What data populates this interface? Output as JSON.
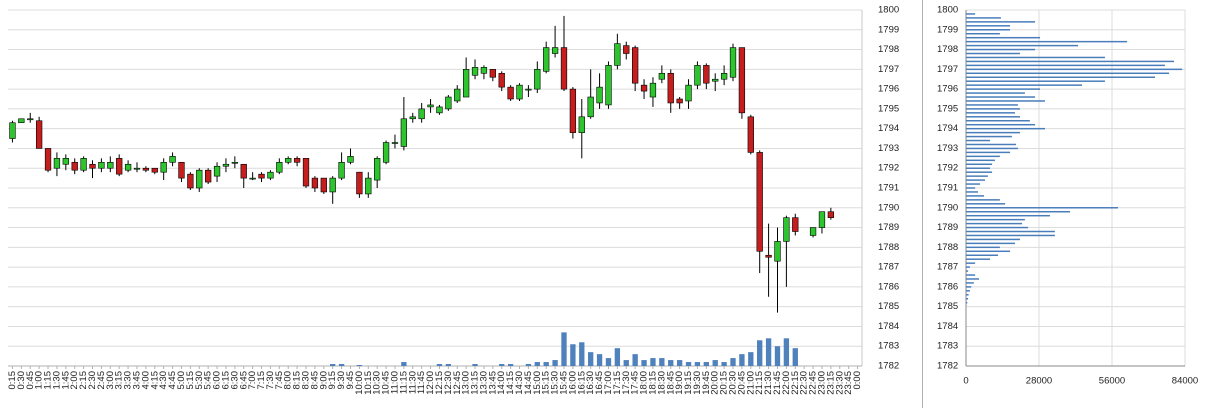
{
  "chart_data": [
    {
      "type": "candlestick",
      "categories": [
        "0:15",
        "0:30",
        "0:45",
        "1:00",
        "1:15",
        "1:30",
        "1:45",
        "2:00",
        "2:15",
        "2:30",
        "2:45",
        "3:00",
        "3:15",
        "3:30",
        "3:45",
        "4:00",
        "4:15",
        "4:30",
        "4:45",
        "5:00",
        "5:15",
        "5:30",
        "5:45",
        "6:00",
        "6:15",
        "6:30",
        "6:45",
        "7:00",
        "7:15",
        "7:30",
        "7:45",
        "8:00",
        "8:15",
        "8:30",
        "8:45",
        "9:00",
        "9:15",
        "9:30",
        "9:45",
        "10:00",
        "10:15",
        "10:30",
        "10:45",
        "11:00",
        "11:15",
        "11:30",
        "11:45",
        "12:00",
        "12:15",
        "12:30",
        "12:45",
        "13:00",
        "13:15",
        "13:30",
        "13:45",
        "14:00",
        "14:15",
        "14:30",
        "14:45",
        "15:00",
        "15:15",
        "15:30",
        "15:45",
        "16:00",
        "16:15",
        "16:30",
        "16:45",
        "17:00",
        "17:15",
        "17:30",
        "17:45",
        "18:00",
        "18:15",
        "18:30",
        "18:45",
        "19:00",
        "19:15",
        "19:30",
        "19:45",
        "20:00",
        "20:15",
        "20:30",
        "20:45",
        "21:00",
        "21:15",
        "21:30",
        "21:45",
        "22:00",
        "22:15",
        "22:30",
        "22:45",
        "23:00",
        "23:15",
        "23:30",
        "23:45",
        "0:00"
      ],
      "candles": [
        [
          1793.5,
          1794.4,
          1793.3,
          1794.3
        ],
        [
          1794.3,
          1794.5,
          1794.3,
          1794.5
        ],
        [
          1794.5,
          1794.8,
          1794.3,
          1794.5
        ],
        [
          1794.4,
          1794.6,
          1793.0,
          1793.0
        ],
        [
          1793.0,
          1793.0,
          1791.8,
          1791.9
        ],
        [
          1792.0,
          1792.8,
          1791.6,
          1792.5
        ],
        [
          1792.2,
          1792.7,
          1791.9,
          1792.5
        ],
        [
          1792.3,
          1792.5,
          1791.7,
          1791.9
        ],
        [
          1791.9,
          1792.6,
          1791.8,
          1792.5
        ],
        [
          1792.2,
          1792.4,
          1791.5,
          1792.0
        ],
        [
          1792.0,
          1792.5,
          1791.8,
          1792.3
        ],
        [
          1792.0,
          1792.6,
          1791.8,
          1792.3
        ],
        [
          1792.5,
          1792.7,
          1791.6,
          1791.7
        ],
        [
          1791.9,
          1792.4,
          1791.8,
          1792.2
        ],
        [
          1792.0,
          1792.3,
          1791.8,
          1792.0
        ],
        [
          1792.0,
          1792.1,
          1791.8,
          1791.9
        ],
        [
          1792.0,
          1792.0,
          1791.7,
          1791.8
        ],
        [
          1791.8,
          1792.5,
          1791.4,
          1792.3
        ],
        [
          1792.3,
          1792.8,
          1792.1,
          1792.6
        ],
        [
          1792.3,
          1792.3,
          1791.3,
          1791.5
        ],
        [
          1791.7,
          1791.8,
          1790.9,
          1791.0
        ],
        [
          1791.0,
          1792.0,
          1790.8,
          1791.9
        ],
        [
          1791.9,
          1792.0,
          1791.2,
          1791.3
        ],
        [
          1791.6,
          1792.3,
          1791.3,
          1792.1
        ],
        [
          1792.1,
          1792.5,
          1791.8,
          1792.2
        ],
        [
          1792.3,
          1792.6,
          1792.0,
          1792.3
        ],
        [
          1792.2,
          1792.2,
          1791.0,
          1791.5
        ],
        [
          1791.5,
          1791.8,
          1791.4,
          1791.5
        ],
        [
          1791.7,
          1791.8,
          1791.3,
          1791.5
        ],
        [
          1791.5,
          1791.9,
          1791.4,
          1791.8
        ],
        [
          1791.8,
          1792.5,
          1791.7,
          1792.3
        ],
        [
          1792.3,
          1792.6,
          1792.2,
          1792.5
        ],
        [
          1792.5,
          1792.6,
          1792.1,
          1792.3
        ],
        [
          1792.5,
          1792.5,
          1791.0,
          1791.1
        ],
        [
          1791.5,
          1791.6,
          1790.8,
          1791.0
        ],
        [
          1791.5,
          1791.5,
          1790.7,
          1790.8
        ],
        [
          1790.8,
          1791.6,
          1790.2,
          1791.5
        ],
        [
          1791.5,
          1792.8,
          1791.4,
          1792.3
        ],
        [
          1792.3,
          1793.0,
          1792.2,
          1792.6
        ],
        [
          1791.8,
          1791.8,
          1790.5,
          1790.7
        ],
        [
          1790.7,
          1791.8,
          1790.5,
          1791.5
        ],
        [
          1791.4,
          1792.6,
          1791.0,
          1792.5
        ],
        [
          1792.3,
          1793.4,
          1792.2,
          1793.3
        ],
        [
          1793.3,
          1793.7,
          1793.0,
          1793.3
        ],
        [
          1793.1,
          1795.6,
          1792.9,
          1794.5
        ],
        [
          1794.5,
          1794.8,
          1794.3,
          1794.6
        ],
        [
          1794.5,
          1795.3,
          1794.3,
          1795.0
        ],
        [
          1795.1,
          1795.5,
          1794.8,
          1795.2
        ],
        [
          1794.8,
          1795.2,
          1794.7,
          1795.1
        ],
        [
          1795.0,
          1795.7,
          1794.9,
          1795.6
        ],
        [
          1795.4,
          1796.2,
          1795.3,
          1796.0
        ],
        [
          1795.6,
          1797.6,
          1795.6,
          1797.0
        ],
        [
          1796.7,
          1797.5,
          1796.5,
          1797.1
        ],
        [
          1796.8,
          1797.2,
          1796.5,
          1797.1
        ],
        [
          1797.0,
          1797.0,
          1796.4,
          1796.6
        ],
        [
          1796.8,
          1796.9,
          1795.9,
          1796.1
        ],
        [
          1796.1,
          1796.2,
          1795.4,
          1795.5
        ],
        [
          1795.5,
          1796.3,
          1795.4,
          1796.2
        ],
        [
          1796.0,
          1796.2,
          1795.6,
          1796.0
        ],
        [
          1796.0,
          1797.4,
          1795.8,
          1797.0
        ],
        [
          1796.9,
          1798.4,
          1796.8,
          1798.1
        ],
        [
          1797.8,
          1799.2,
          1797.6,
          1798.1
        ],
        [
          1798.1,
          1799.7,
          1795.9,
          1796.0
        ],
        [
          1796.0,
          1796.1,
          1793.5,
          1793.8
        ],
        [
          1793.8,
          1795.5,
          1792.5,
          1794.6
        ],
        [
          1794.6,
          1797.0,
          1794.5,
          1795.6
        ],
        [
          1795.3,
          1796.8,
          1795.0,
          1796.1
        ],
        [
          1795.2,
          1797.4,
          1795.0,
          1797.2
        ],
        [
          1797.2,
          1798.8,
          1797.0,
          1798.3
        ],
        [
          1798.2,
          1798.4,
          1797.5,
          1797.8
        ],
        [
          1798.1,
          1798.2,
          1795.9,
          1796.3
        ],
        [
          1796.2,
          1796.5,
          1795.5,
          1795.9
        ],
        [
          1795.6,
          1796.6,
          1795.1,
          1796.3
        ],
        [
          1796.5,
          1797.2,
          1796.3,
          1796.8
        ],
        [
          1796.8,
          1797.0,
          1794.8,
          1795.3
        ],
        [
          1795.5,
          1795.6,
          1795.0,
          1795.3
        ],
        [
          1795.4,
          1796.5,
          1795.0,
          1796.2
        ],
        [
          1796.2,
          1797.4,
          1796.0,
          1797.2
        ],
        [
          1797.2,
          1797.3,
          1796.0,
          1796.3
        ],
        [
          1796.4,
          1796.8,
          1795.9,
          1796.5
        ],
        [
          1796.5,
          1797.2,
          1796.2,
          1796.8
        ],
        [
          1796.6,
          1798.3,
          1796.4,
          1798.1
        ],
        [
          1798.1,
          1798.1,
          1794.5,
          1794.8
        ],
        [
          1794.6,
          1794.7,
          1792.7,
          1792.8
        ],
        [
          1792.8,
          1792.9,
          1786.7,
          1787.8
        ],
        [
          1787.6,
          1789.2,
          1785.5,
          1787.5
        ],
        [
          1787.3,
          1789.0,
          1784.7,
          1788.3
        ],
        [
          1788.3,
          1789.6,
          1786.0,
          1789.5
        ],
        [
          1789.5,
          1789.7,
          1788.6,
          1788.8
        ],
        null,
        [
          1788.6,
          1789.0,
          1788.5,
          1789.0
        ],
        [
          1789.0,
          1789.8,
          1788.7,
          1789.8
        ],
        [
          1789.8,
          1790.0,
          1789.4,
          1789.5
        ],
        null,
        null,
        null
      ],
      "volume": [
        null,
        null,
        null,
        null,
        null,
        null,
        null,
        null,
        null,
        null,
        null,
        null,
        null,
        null,
        null,
        null,
        null,
        null,
        null,
        null,
        null,
        null,
        null,
        null,
        null,
        null,
        null,
        null,
        null,
        null,
        null,
        null,
        null,
        null,
        null,
        null,
        1782.1,
        1782.1,
        null,
        1782.05,
        null,
        null,
        null,
        null,
        1782.2,
        null,
        null,
        null,
        1782.1,
        1782.1,
        null,
        null,
        1782.1,
        null,
        null,
        1782.1,
        1782.1,
        null,
        1782.1,
        1782.2,
        1782.2,
        1782.3,
        1783.7,
        1783.1,
        1783.2,
        1782.7,
        1782.6,
        1782.4,
        1782.9,
        1782.3,
        1782.6,
        1782.3,
        1782.4,
        1782.4,
        1782.3,
        1782.3,
        1782.2,
        1782.2,
        1782.2,
        1782.3,
        1782.2,
        1782.4,
        1782.6,
        1782.7,
        1783.3,
        1783.4,
        1783.0,
        1783.4,
        1782.9,
        null,
        null,
        null,
        null,
        null,
        null,
        null
      ],
      "up_color": "#2ec42e",
      "down_color": "#c41e1e",
      "volume_color": "#4f81bd",
      "ylim": [
        1782,
        1800
      ],
      "yticks": [
        1782,
        1783,
        1784,
        1785,
        1786,
        1787,
        1788,
        1789,
        1790,
        1791,
        1792,
        1793,
        1794,
        1795,
        1796,
        1797,
        1798,
        1799,
        1800
      ],
      "grid": true
    },
    {
      "type": "barh",
      "y": [
        1799.8,
        1799.6,
        1799.4,
        1799.2,
        1799.0,
        1798.8,
        1798.6,
        1798.4,
        1798.2,
        1798.0,
        1797.8,
        1797.6,
        1797.4,
        1797.2,
        1797.0,
        1796.8,
        1796.6,
        1796.4,
        1796.2,
        1796.0,
        1795.8,
        1795.6,
        1795.4,
        1795.2,
        1795.0,
        1794.8,
        1794.6,
        1794.4,
        1794.2,
        1794.0,
        1793.8,
        1793.6,
        1793.4,
        1793.2,
        1793.0,
        1792.8,
        1792.6,
        1792.4,
        1792.2,
        1792.0,
        1791.8,
        1791.6,
        1791.4,
        1791.2,
        1791.0,
        1790.8,
        1790.6,
        1790.4,
        1790.2,
        1790.0,
        1789.8,
        1789.6,
        1789.4,
        1789.2,
        1789.0,
        1788.8,
        1788.6,
        1788.4,
        1788.2,
        1788.0,
        1787.8,
        1787.6,
        1787.4,
        1787.2,
        1787.0,
        1786.8,
        1786.6,
        1786.4,
        1786.2,
        1786.0,
        1785.8,
        1785.6,
        1785.4,
        1785.2
      ],
      "values": [
        3500,
        13400,
        26500,
        16900,
        16900,
        13000,
        28400,
        61800,
        43000,
        26500,
        20700,
        53300,
        79800,
        76300,
        82900,
        77900,
        72500,
        53300,
        44500,
        28400,
        22600,
        26500,
        30300,
        19900,
        20700,
        18800,
        20700,
        24500,
        26500,
        30300,
        20700,
        17600,
        9200,
        19200,
        19900,
        16900,
        13000,
        11100,
        10000,
        9200,
        10000,
        8400,
        7300,
        5400,
        3500,
        4600,
        6900,
        13000,
        15000,
        58300,
        39900,
        32200,
        22600,
        21500,
        23800,
        34100,
        34100,
        20700,
        18800,
        13000,
        16900,
        12300,
        9200,
        3500,
        1500,
        800,
        3500,
        5000,
        3000,
        2000,
        1500,
        1000,
        800,
        500
      ],
      "color": "#4a7ebb",
      "xlim": [
        0,
        84000
      ],
      "xticks": [
        0,
        28000,
        56000,
        84000
      ],
      "ylim": [
        1782,
        1800
      ],
      "yticks": [
        1782,
        1783,
        1784,
        1785,
        1786,
        1787,
        1788,
        1789,
        1790,
        1791,
        1792,
        1793,
        1794,
        1795,
        1796,
        1797,
        1798,
        1799,
        1800
      ],
      "grid": true
    }
  ]
}
